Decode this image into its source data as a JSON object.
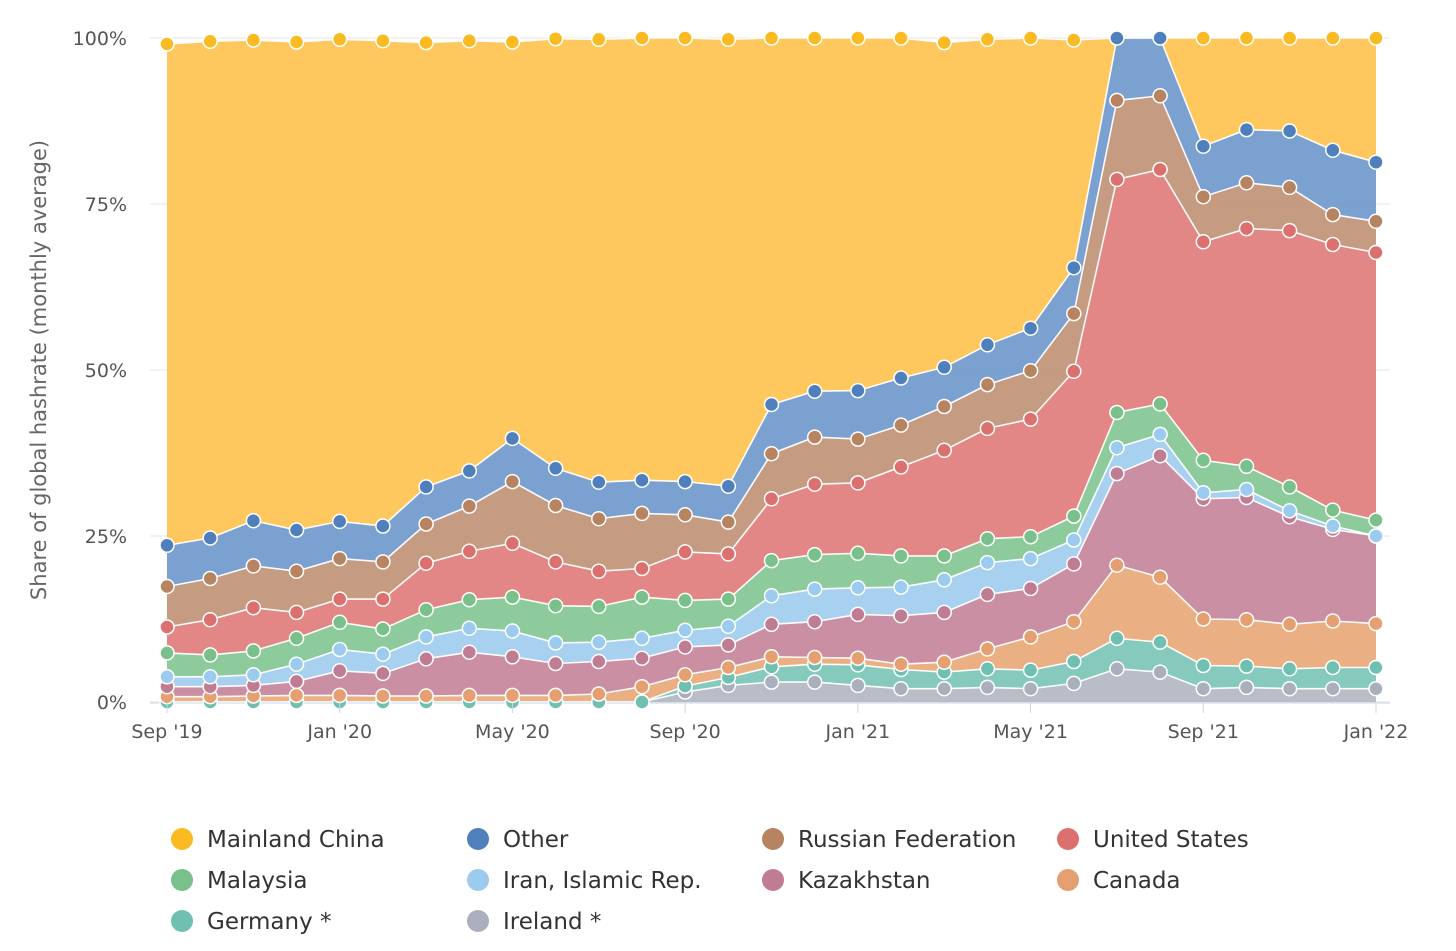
{
  "chart_data": {
    "type": "area",
    "stacked": true,
    "ylabel": "Share of global hashrate (monthly average)",
    "ylim": [
      0,
      100
    ],
    "yticks": [
      "0%",
      "25%",
      "50%",
      "75%",
      "100%"
    ],
    "xticks": [
      "Sep '19",
      "Jan '20",
      "May '20",
      "Sep '20",
      "Jan '21",
      "May '21",
      "Sep '21",
      "Jan '22"
    ],
    "x": [
      "2019-09",
      "2019-10",
      "2019-11",
      "2019-12",
      "2020-01",
      "2020-02",
      "2020-03",
      "2020-04",
      "2020-05",
      "2020-06",
      "2020-07",
      "2020-08",
      "2020-09",
      "2020-10",
      "2020-11",
      "2020-12",
      "2021-01",
      "2021-02",
      "2021-03",
      "2021-04",
      "2021-05",
      "2021-06",
      "2021-07",
      "2021-08",
      "2021-09",
      "2021-10",
      "2021-11",
      "2021-12",
      "2022-01"
    ],
    "grid": true,
    "legend_position": "bottom",
    "series": [
      {
        "name": "Ireland *",
        "color": "#b3b7c3",
        "values": [
          0,
          0,
          0,
          0,
          0,
          0,
          0,
          0,
          0,
          0,
          0,
          0,
          1.5,
          2.5,
          3.0,
          3.0,
          2.5,
          2.0,
          2.0,
          2.2,
          2.0,
          2.8,
          5.0,
          4.5,
          2.0,
          2.2,
          2.0,
          2.0,
          2.0
        ]
      },
      {
        "name": "Germany *",
        "color": "#7cc5b8",
        "values": [
          0,
          0,
          0,
          0,
          0,
          0,
          0,
          0,
          0,
          0,
          0,
          0,
          0.9,
          1.2,
          2.3,
          2.7,
          3.1,
          2.9,
          2.5,
          2.8,
          2.8,
          3.3,
          4.6,
          4.5,
          3.5,
          3.2,
          3.0,
          3.2,
          3.2
        ]
      },
      {
        "name": "Canada",
        "color": "#e9a87a",
        "values": [
          0.8,
          0.8,
          0.9,
          1.0,
          1.0,
          0.9,
          0.9,
          1.0,
          1.0,
          1.0,
          1.2,
          2.3,
          1.7,
          1.5,
          1.5,
          1.0,
          1.0,
          0.8,
          1.5,
          3.0,
          5.0,
          6.0,
          11.0,
          9.8,
          7.0,
          7.0,
          6.7,
          7.0,
          6.6
        ]
      },
      {
        "name": "Kazakhstan",
        "color": "#c5869a",
        "values": [
          1.5,
          1.5,
          1.6,
          2.1,
          3.7,
          3.4,
          5.6,
          6.5,
          5.8,
          4.8,
          4.9,
          4.3,
          4.2,
          3.4,
          4.9,
          5.4,
          6.6,
          7.3,
          7.5,
          8.2,
          7.3,
          8.7,
          13.8,
          18.3,
          18.1,
          18.4,
          16.2,
          13.8,
          13.2
        ]
      },
      {
        "name": "Iran, Islamic Rep.",
        "color": "#a1cdef",
        "values": [
          1.5,
          1.5,
          1.6,
          2.6,
          3.2,
          2.9,
          3.3,
          3.6,
          3.9,
          3.1,
          2.9,
          3.0,
          2.5,
          2.8,
          4.3,
          4.9,
          4.0,
          4.3,
          4.9,
          4.8,
          4.5,
          3.6,
          3.9,
          3.2,
          0.9,
          1.2,
          0.9,
          0.5,
          0
        ]
      },
      {
        "name": "Malaysia",
        "color": "#84c794",
        "values": [
          3.6,
          3.3,
          3.6,
          3.9,
          4.1,
          3.8,
          4.1,
          4.3,
          5.1,
          5.6,
          5.4,
          6.2,
          4.5,
          4.1,
          5.3,
          5.2,
          5.2,
          4.7,
          3.6,
          3.6,
          3.3,
          3.6,
          5.3,
          4.6,
          4.9,
          3.5,
          3.6,
          2.4,
          2.4
        ]
      },
      {
        "name": "United States",
        "color": "#e07d7b",
        "values": [
          3.9,
          5.3,
          6.5,
          3.9,
          3.5,
          4.5,
          7.0,
          7.3,
          8.1,
          6.6,
          5.3,
          4.3,
          7.3,
          6.8,
          9.3,
          10.6,
          10.6,
          13.4,
          15.9,
          16.6,
          17.7,
          21.8,
          35.1,
          35.3,
          32.9,
          35.8,
          38.6,
          40.0,
          40.3
        ]
      },
      {
        "name": "Russian Federation",
        "color": "#c09277",
        "values": [
          6.1,
          6.2,
          6.3,
          6.2,
          6.1,
          5.6,
          5.9,
          6.8,
          9.3,
          8.5,
          7.9,
          8.3,
          5.6,
          4.8,
          6.8,
          7.1,
          6.6,
          6.3,
          6.6,
          6.6,
          7.3,
          8.7,
          11.9,
          11.1,
          6.8,
          6.9,
          6.5,
          4.5,
          4.7
        ]
      },
      {
        "name": "Other",
        "color": "#6f99cc",
        "values": [
          6.2,
          6.1,
          6.8,
          6.2,
          5.6,
          5.4,
          5.6,
          5.3,
          6.5,
          5.6,
          5.5,
          5.0,
          5.0,
          5.4,
          7.4,
          6.9,
          7.3,
          7.1,
          5.9,
          6.0,
          6.4,
          6.9,
          9.4,
          8.9,
          7.6,
          8.0,
          8.5,
          9.7,
          8.9
        ]
      },
      {
        "name": "Mainland China",
        "color": "#fec351",
        "values": [
          75.5,
          74.8,
          72.4,
          73.5,
          72.6,
          73.1,
          66.9,
          64.8,
          59.7,
          64.7,
          66.7,
          66.7,
          66.9,
          67.3,
          55.4,
          53.3,
          53.3,
          51.6,
          48.9,
          46.0,
          43.8,
          34.3,
          0,
          0,
          22.2,
          18.2,
          18.2,
          19.1,
          21.1
        ]
      }
    ]
  },
  "legend": [
    {
      "label": "Mainland China",
      "color": "#f9bb21"
    },
    {
      "label": "Other",
      "color": "#4f7fbc"
    },
    {
      "label": "Russian Federation",
      "color": "#b78462"
    },
    {
      "label": "United States",
      "color": "#dc706e"
    },
    {
      "label": "Malaysia",
      "color": "#79c08a"
    },
    {
      "label": "Iran, Islamic Rep.",
      "color": "#9bcbee"
    },
    {
      "label": "Kazakhstan",
      "color": "#c07c92"
    },
    {
      "label": "Canada",
      "color": "#e69f70"
    },
    {
      "label": "Germany *",
      "color": "#6fc0b1"
    },
    {
      "label": "Ireland *",
      "color": "#a9afbd"
    }
  ]
}
